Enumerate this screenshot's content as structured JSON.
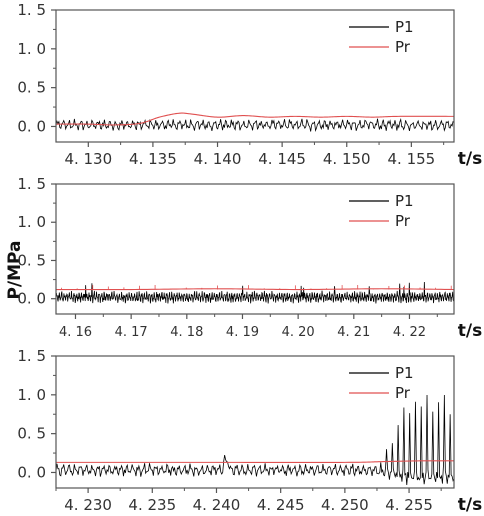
{
  "figure": {
    "ylabel": "P/MPa",
    "xunit": "t/s",
    "colors": {
      "P1": "#000000",
      "Pr": "#e05050",
      "axis": "#555555"
    }
  },
  "chart_data": [
    {
      "type": "line",
      "panel": 1,
      "xlim": [
        4.1275,
        4.1583
      ],
      "ylim": [
        -0.2,
        1.5
      ],
      "xticks": [
        "4. 130",
        "4. 135",
        "4. 140",
        "4. 145",
        "4. 150",
        "4. 155"
      ],
      "xtick_values": [
        4.13,
        4.135,
        4.14,
        4.145,
        4.15,
        4.155
      ],
      "yticks": [
        "0. 0",
        "0. 5",
        "1. 0",
        "1. 5"
      ],
      "ytick_values": [
        0.0,
        0.5,
        1.0,
        1.5
      ],
      "legend_position": "top-right",
      "series": [
        {
          "name": "P1",
          "color": "#000000",
          "pattern": {
            "kind": "oscillation",
            "baseline": 0.02,
            "amplitude": 0.07,
            "period_s": 0.00045
          }
        },
        {
          "name": "Pr",
          "color": "#e05050",
          "points": [
            [
              4.1275,
              0.03
            ],
            [
              4.13,
              0.03
            ],
            [
              4.132,
              0.02
            ],
            [
              4.134,
              0.04
            ],
            [
              4.1355,
              0.12
            ],
            [
              4.137,
              0.17
            ],
            [
              4.138,
              0.16
            ],
            [
              4.14,
              0.12
            ],
            [
              4.142,
              0.14
            ],
            [
              4.144,
              0.12
            ],
            [
              4.146,
              0.13
            ],
            [
              4.148,
              0.12
            ],
            [
              4.15,
              0.13
            ],
            [
              4.152,
              0.12
            ],
            [
              4.154,
              0.13
            ],
            [
              4.1583,
              0.13
            ]
          ]
        }
      ]
    },
    {
      "type": "line",
      "panel": 2,
      "xlim": [
        4.1565,
        4.228
      ],
      "ylim": [
        -0.2,
        1.5
      ],
      "xticks": [
        "4. 16",
        "4. 17",
        "4. 18",
        "4. 19",
        "4. 20",
        "4. 21",
        "4. 22"
      ],
      "xtick_values": [
        4.16,
        4.17,
        4.18,
        4.19,
        4.2,
        4.21,
        4.22
      ],
      "yticks": [
        "0. 0",
        "0. 5",
        "1. 0",
        "1. 5"
      ],
      "ytick_values": [
        0.0,
        0.5,
        1.0,
        1.5
      ],
      "legend_position": "top-right",
      "series": [
        {
          "name": "P1",
          "color": "#000000",
          "pattern": {
            "kind": "oscillation",
            "baseline": 0.02,
            "amplitude": 0.07,
            "period_s": 0.00045
          }
        },
        {
          "name": "Pr",
          "color": "#e05050",
          "points": [
            [
              4.1565,
              0.12
            ],
            [
              4.17,
              0.12
            ],
            [
              4.185,
              0.13
            ],
            [
              4.2,
              0.12
            ],
            [
              4.215,
              0.13
            ],
            [
              4.228,
              0.12
            ]
          ]
        }
      ]
    },
    {
      "type": "line",
      "panel": 3,
      "xlim": [
        4.2275,
        4.2585
      ],
      "ylim": [
        -0.2,
        1.5
      ],
      "xticks": [
        "4. 230",
        "4. 235",
        "4. 240",
        "4. 245",
        "4. 250",
        "4. 255"
      ],
      "xtick_values": [
        4.23,
        4.235,
        4.24,
        4.245,
        4.25,
        4.255
      ],
      "yticks": [
        "0. 0",
        "0. 5",
        "1. 0",
        "1. 5"
      ],
      "ytick_values": [
        0.0,
        0.5,
        1.0,
        1.5
      ],
      "legend_position": "top-right",
      "series": [
        {
          "name": "P1",
          "color": "#000000",
          "pattern": {
            "kind": "oscillation",
            "baseline": 0.03,
            "amplitude": 0.08,
            "period_s": 0.00045,
            "spike_onset_s": 4.2525,
            "spike_peak": 0.93
          }
        },
        {
          "name": "Pr",
          "color": "#e05050",
          "points": [
            [
              4.2275,
              0.13
            ],
            [
              4.24,
              0.13
            ],
            [
              4.25,
              0.13
            ],
            [
              4.253,
              0.14
            ],
            [
              4.256,
              0.15
            ],
            [
              4.2585,
              0.15
            ]
          ]
        }
      ]
    }
  ]
}
